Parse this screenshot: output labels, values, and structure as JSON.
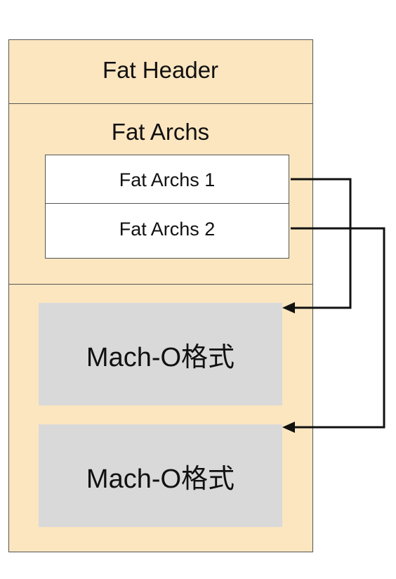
{
  "diagram": {
    "fat_header": "Fat Header",
    "fat_archs_title": "Fat Archs",
    "archs": [
      "Fat Archs 1",
      "Fat Archs 2"
    ],
    "macho_blocks": [
      "Mach-O格式",
      "Mach-O格式"
    ],
    "colors": {
      "container_fill": "#fce6c0",
      "block_fill": "#d9d9d9",
      "arch_fill": "#ffffff",
      "arrow": "#111111",
      "border": "#555555"
    }
  }
}
